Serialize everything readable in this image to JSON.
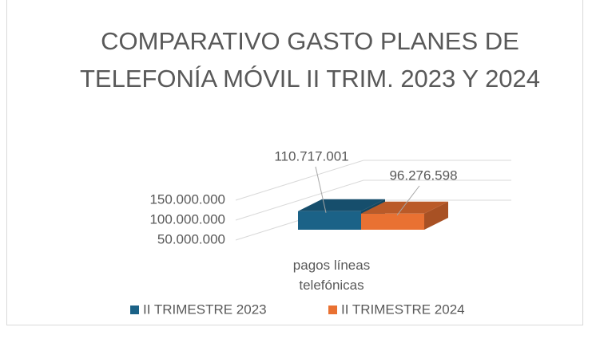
{
  "chart_data": {
    "type": "bar3d",
    "title": "COMPARATIVO GASTO PLANES DE TELEFONÍA MÓVIL II TRIM. 2023 Y 2024",
    "categories": [
      "pagos líneas telefónicas"
    ],
    "series": [
      {
        "name": "II TRIMESTRE 2023",
        "color": "#1b6287",
        "values": [
          110717001
        ],
        "value_labels": [
          "110.717.001"
        ]
      },
      {
        "name": "II TRIMESTRE 2024",
        "color": "#e97132",
        "values": [
          96276598
        ],
        "value_labels": [
          "96.276.598"
        ]
      }
    ],
    "ylim": [
      0,
      150000000
    ],
    "yticks": [
      {
        "value": 50000000,
        "label": "50.000.000"
      },
      {
        "value": 100000000,
        "label": "100.000.000"
      },
      {
        "value": 150000000,
        "label": "150.000.000"
      }
    ],
    "grid": true
  }
}
